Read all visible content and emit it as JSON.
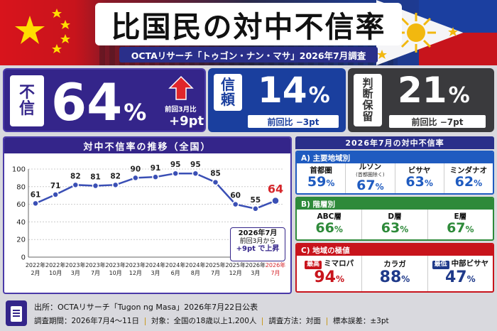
{
  "header": {
    "title": "比国民の対中不信率",
    "subtitle": "OCTAリサーチ「トゥゴン・ナン・マサ」2026年7月調査"
  },
  "stats": {
    "distrust": {
      "label1": "不",
      "label2": "信",
      "value": "64",
      "unit": "%",
      "compare": "前回3月比",
      "delta": "+9pt"
    },
    "trust": {
      "label1": "信",
      "label2": "頼",
      "value": "14",
      "unit": "%",
      "delta": "前回比 −3pt"
    },
    "undecided": {
      "label1": "判",
      "label2": "断",
      "label3": "保",
      "label4": "留",
      "value": "21",
      "unit": "%",
      "delta": "前回比 −7pt"
    }
  },
  "chart": {
    "title": "対中不信率の推移（全国）",
    "callout_line1": "2026年7月",
    "callout_line2": "前回3月から",
    "callout_line3": "+9pt で上昇"
  },
  "chart_data": {
    "type": "line",
    "categories": [
      "2022年2月",
      "2022年10月",
      "2023年3月",
      "2023年7月",
      "2023年10月",
      "2023年12月",
      "2024年3月",
      "2024年6月",
      "2024年8月",
      "2025年7月",
      "2025年12月",
      "2026年3月",
      "2026年7月"
    ],
    "cat_year": [
      "2022年",
      "2022年",
      "2023年",
      "2023年",
      "2023年",
      "2023年",
      "2024年",
      "2024年",
      "2024年",
      "2025年",
      "2025年",
      "2026年",
      "2026年"
    ],
    "cat_month": [
      "2月",
      "10月",
      "3月",
      "7月",
      "10月",
      "12月",
      "3月",
      "6月",
      "8月",
      "7月",
      "12月",
      "3月",
      "7月"
    ],
    "values": [
      61,
      71,
      82,
      81,
      82,
      90,
      91,
      95,
      95,
      85,
      60,
      55,
      64
    ],
    "ylim": [
      0,
      100
    ],
    "yticks": [
      0,
      20,
      40,
      60,
      80,
      100
    ],
    "grid": true,
    "line_color": "#3a4fb5",
    "highlight_color": "#d6262b"
  },
  "right": {
    "title": "2026年7月の対中不信率",
    "regions": {
      "label": "A) 主要地域別",
      "color": "#1f5bc0",
      "items": [
        {
          "name": "首都圏",
          "note": "",
          "value": "59",
          "unit": "%"
        },
        {
          "name": "ルソン",
          "note": "(首都圏除く)",
          "value": "67",
          "unit": "%"
        },
        {
          "name": "ビサヤ",
          "note": "",
          "value": "63",
          "unit": "%"
        },
        {
          "name": "ミンダナオ",
          "note": "",
          "value": "62",
          "unit": "%"
        }
      ]
    },
    "classes": {
      "label": "B) 階層別",
      "color": "#2e8a3a",
      "items": [
        {
          "name": "ABC層",
          "value": "66",
          "unit": "%"
        },
        {
          "name": "D層",
          "value": "63",
          "unit": "%"
        },
        {
          "name": "E層",
          "value": "67",
          "unit": "%"
        }
      ]
    },
    "extremes": {
      "label": "C) 地域の極値",
      "color": "#c8141c",
      "items": [
        {
          "tag": "最高",
          "name": "ミマロパ",
          "value": "94",
          "unit": "%",
          "tag_color": "#c8141c",
          "val_color": "#c8141c"
        },
        {
          "tag": "",
          "name": "カラガ",
          "value": "88",
          "unit": "%",
          "tag_color": "",
          "val_color": "#1f3a8a"
        },
        {
          "tag": "最低",
          "name": "中部ビサヤ",
          "value": "47",
          "unit": "%",
          "tag_color": "#1f3a8a",
          "val_color": "#1f3a8a"
        }
      ]
    }
  },
  "footer": {
    "source": "出所：OCTAリサーチ「Tugon ng Masa」2026年7月22日公表",
    "period": "調査期間：2026年7月4〜11日",
    "target": "対象：全国の18歳以上1,200人",
    "method": "調査方法：対面",
    "error": "標本誤差：±3pt"
  },
  "colors": {
    "purple": "#34258a",
    "blue": "#1a3f9e",
    "gray": "#3a3a3d",
    "red": "#d6262b"
  }
}
